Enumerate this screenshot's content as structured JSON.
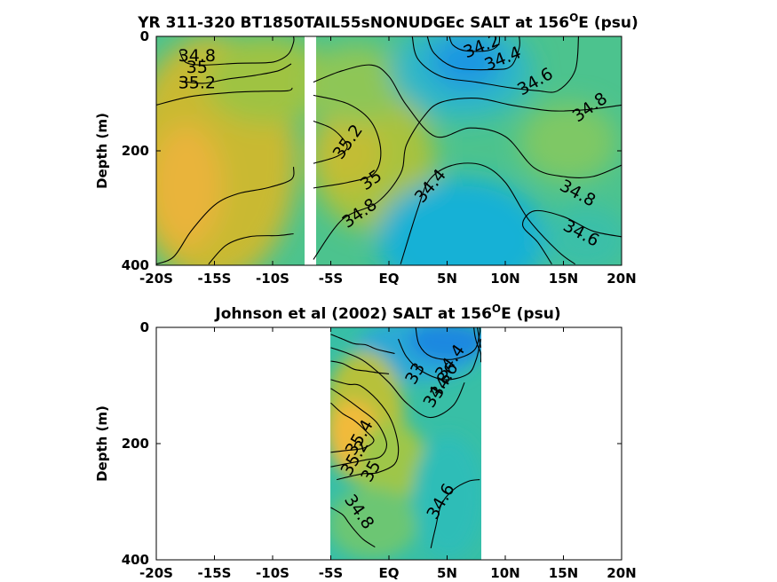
{
  "colors": {
    "fresh_min": "#1f8fe8",
    "fresh": "#2aa6da",
    "mid": "#2ec4b0",
    "green": "#63c47a",
    "yellowgreen": "#a8c23a",
    "salty": "#cdb92e",
    "salty_max": "#f5b83a",
    "contour_line": "#000000",
    "background": "#ffffff"
  },
  "chart_data": [
    {
      "type": "heatmap",
      "title_main": "YR 311-320 BT1850TAIL55sNONUDGEc SALT at 156",
      "title_sup": "O",
      "title_tail": "E (psu)",
      "xlabel": "",
      "ylabel": "Depth (m)",
      "x_ticks": [
        "-20S",
        "-15S",
        "-10S",
        "-5S",
        "EQ",
        "5N",
        "10N",
        "15N",
        "20N"
      ],
      "x_tick_values": [
        -20,
        -15,
        -10,
        -5,
        0,
        5,
        10,
        15,
        20
      ],
      "y_ticks": [
        "0",
        "200",
        "400"
      ],
      "y_tick_values": [
        0,
        200,
        400
      ],
      "xlim": [
        -20,
        20
      ],
      "ylim": [
        0,
        400
      ],
      "y_reversed": true,
      "data_gap_lat": [
        -7.4,
        -6.6
      ],
      "field_region_lat": [
        -20,
        20
      ],
      "contour_labels": [
        "34.8",
        "35",
        "35.2",
        "35.2",
        "35",
        "34.8",
        "34.4",
        "34.2",
        "34.4",
        "34.6",
        "34.8",
        "34.8",
        "34.6"
      ],
      "contour_label_positions": [
        [
          -16.5,
          35
        ],
        [
          -16.5,
          55
        ],
        [
          -16.5,
          82
        ],
        [
          -3.5,
          185
        ],
        [
          -1.5,
          252
        ],
        [
          -2.5,
          310
        ],
        [
          3.6,
          262
        ],
        [
          8,
          18
        ],
        [
          9.8,
          40
        ],
        [
          12.6,
          80
        ],
        [
          17.3,
          125
        ],
        [
          16.2,
          275
        ],
        [
          16.5,
          345
        ]
      ],
      "contour_lines": [
        {
          "level": "35",
          "points": [
            [
              -18,
              25
            ],
            [
              -17.5,
              45
            ],
            [
              -16,
              50
            ],
            [
              -13,
              47
            ],
            [
              -10.5,
              46
            ],
            [
              -9.5,
              42
            ],
            [
              -8.6,
              30
            ],
            [
              -8.2,
              10
            ],
            [
              -8.2,
              0
            ]
          ]
        },
        {
          "level": "35.2",
          "points": [
            [
              -18,
              78
            ],
            [
              -16,
              82
            ],
            [
              -14,
              75
            ],
            [
              -11.5,
              68
            ],
            [
              -9.5,
              60
            ],
            [
              -8.4,
              48
            ]
          ]
        },
        {
          "level": "35",
          "points": [
            [
              -20,
              120
            ],
            [
              -17,
              105
            ],
            [
              -13.5,
              98
            ],
            [
              -11,
              96
            ],
            [
              -8.7,
              95
            ],
            [
              -8.3,
              90
            ]
          ]
        },
        {
          "level": "35.2",
          "points": [
            [
              -20,
              398
            ],
            [
              -18.5,
              385
            ],
            [
              -17,
              340
            ],
            [
              -15,
              295
            ],
            [
              -13,
              275
            ],
            [
              -10.5,
              265
            ],
            [
              -8.4,
              250
            ],
            [
              -8.2,
              228
            ]
          ]
        },
        {
          "level": "35",
          "points": [
            [
              -15.5,
              398
            ],
            [
              -14,
              365
            ],
            [
              -12,
              350
            ],
            [
              -9.5,
              348
            ],
            [
              -8.2,
              345
            ]
          ]
        },
        {
          "level": "35.2",
          "points": [
            [
              -6.5,
              148
            ],
            [
              -5,
              160
            ],
            [
              -4,
              178
            ],
            [
              -3.6,
              195
            ],
            [
              -4.5,
              210
            ],
            [
              -6.5,
              222
            ]
          ]
        },
        {
          "level": "35",
          "points": [
            [
              -6.5,
              103
            ],
            [
              -3.5,
              118
            ],
            [
              -1.5,
              150
            ],
            [
              -0.7,
              200
            ],
            [
              -1.3,
              240
            ],
            [
              -3.5,
              255
            ],
            [
              -6.5,
              265
            ]
          ]
        },
        {
          "level": "34.8",
          "points": [
            [
              -6.5,
              80
            ],
            [
              -4,
              60
            ],
            [
              -1.5,
              50
            ],
            [
              0,
              70
            ],
            [
              1.5,
              120
            ],
            [
              4,
              175
            ],
            [
              7,
              160
            ],
            [
              10,
              175
            ],
            [
              12.5,
              230
            ],
            [
              15,
              245
            ],
            [
              17.5,
              245
            ],
            [
              20,
              225
            ]
          ]
        },
        {
          "level": "34.8",
          "points": [
            [
              -6.5,
              390
            ],
            [
              -4,
              320
            ],
            [
              -1,
              290
            ],
            [
              1,
              240
            ],
            [
              1.5,
              190
            ],
            [
              3,
              140
            ],
            [
              4.5,
              115
            ],
            [
              7.5,
              108
            ],
            [
              10.5,
              120
            ],
            [
              14,
              130
            ],
            [
              17,
              128
            ],
            [
              20,
              120
            ]
          ]
        },
        {
          "level": "34.6",
          "points": [
            [
              2,
              0
            ],
            [
              2.5,
              40
            ],
            [
              4.5,
              70
            ],
            [
              7.5,
              80
            ],
            [
              10.5,
              90
            ],
            [
              12.8,
              95
            ],
            [
              14.5,
              95
            ],
            [
              16,
              60
            ],
            [
              16.3,
              0
            ]
          ]
        },
        {
          "level": "34.4",
          "points": [
            [
              3.3,
              0
            ],
            [
              3.9,
              30
            ],
            [
              5.8,
              55
            ],
            [
              9,
              58
            ],
            [
              10.5,
              52
            ],
            [
              11.2,
              20
            ],
            [
              11.2,
              0
            ]
          ]
        },
        {
          "level": "34.2",
          "points": [
            [
              5.2,
              0
            ],
            [
              5.5,
              15
            ],
            [
              6.5,
              25
            ],
            [
              8.5,
              25
            ],
            [
              9.4,
              15
            ],
            [
              9.5,
              0
            ]
          ]
        },
        {
          "level": "34.4",
          "points": [
            [
              1,
              398
            ],
            [
              2.5,
              300
            ],
            [
              3.5,
              250
            ],
            [
              5.5,
              225
            ],
            [
              8,
              225
            ],
            [
              10,
              255
            ],
            [
              12,
              320
            ],
            [
              14.5,
              375
            ],
            [
              16,
              398
            ]
          ]
        },
        {
          "level": "34.6",
          "points": [
            [
              14,
              398
            ],
            [
              12.8,
              360
            ],
            [
              11.5,
              330
            ],
            [
              12.5,
              305
            ],
            [
              15,
              315
            ],
            [
              17.5,
              340
            ],
            [
              20,
              350
            ]
          ]
        }
      ]
    },
    {
      "type": "heatmap",
      "title_main": "Johnson et al (2002) SALT at 156",
      "title_sup": "O",
      "title_tail": "E (psu)",
      "xlabel": "",
      "ylabel": "Depth (m)",
      "x_ticks": [
        "-20S",
        "-15S",
        "-10S",
        "-5S",
        "EQ",
        "5N",
        "10N",
        "15N",
        "20N"
      ],
      "x_tick_values": [
        -20,
        -15,
        -10,
        -5,
        0,
        5,
        10,
        15,
        20
      ],
      "y_ticks": [
        "0",
        "200",
        "400"
      ],
      "y_tick_values": [
        0,
        200,
        400
      ],
      "xlim": [
        -20,
        20
      ],
      "ylim": [
        0,
        400
      ],
      "y_reversed": true,
      "field_region_lat": [
        -5,
        8
      ],
      "contour_labels": [
        "34.4",
        "34.6",
        "34.8",
        "33",
        "35.4",
        "35.2",
        "35",
        "34.8",
        "34.6"
      ],
      "contour_label_positions": [
        [
          5.3,
          60
        ],
        [
          4.8,
          92
        ],
        [
          4.2,
          108
        ],
        [
          2.3,
          80
        ],
        [
          -2.5,
          190
        ],
        [
          -2.9,
          225
        ],
        [
          -1.5,
          248
        ],
        [
          -2.6,
          318
        ],
        [
          4.5,
          300
        ]
      ],
      "contour_lines": [
        {
          "level": "34.4",
          "points": [
            [
              2.3,
              0
            ],
            [
              2.6,
              30
            ],
            [
              3.6,
              50
            ],
            [
              5.5,
              55
            ],
            [
              7.3,
              40
            ],
            [
              7.8,
              10
            ],
            [
              7.8,
              0
            ]
          ]
        },
        {
          "level": "34.6",
          "points": [
            [
              0.8,
              20
            ],
            [
              1.5,
              50
            ],
            [
              2.8,
              75
            ],
            [
              4.8,
              90
            ],
            [
              6.8,
              80
            ],
            [
              7.5,
              55
            ],
            [
              7.9,
              20
            ]
          ]
        },
        {
          "level": "34.8",
          "points": [
            [
              -5,
              35
            ],
            [
              -3.5,
              45
            ],
            [
              -2,
              60
            ],
            [
              0,
              95
            ],
            [
              1.5,
              130
            ],
            [
              3.5,
              155
            ],
            [
              5.5,
              135
            ],
            [
              6.5,
              95
            ]
          ]
        },
        {
          "level": "35",
          "points": [
            [
              -5,
              90
            ],
            [
              -3.5,
              98
            ],
            [
              -2.5,
              100
            ],
            [
              -1,
              125
            ],
            [
              0.2,
              160
            ],
            [
              0.8,
              205
            ],
            [
              0.5,
              235
            ],
            [
              -1,
              250
            ],
            [
              -2.3,
              252
            ],
            [
              -4.5,
              262
            ]
          ]
        },
        {
          "level": "35.2",
          "points": [
            [
              -5,
              105
            ],
            [
              -4,
              118
            ],
            [
              -2.5,
              140
            ],
            [
              -1,
              165
            ],
            [
              -0.2,
              200
            ],
            [
              -0.7,
              222
            ],
            [
              -2,
              228
            ],
            [
              -4,
              236
            ],
            [
              -5,
              240
            ]
          ]
        },
        {
          "level": "35.4",
          "points": [
            [
              -5,
              130
            ],
            [
              -4,
              148
            ],
            [
              -3,
              160
            ],
            [
              -2,
              178
            ],
            [
              -1.3,
              195
            ],
            [
              -2.2,
              208
            ],
            [
              -3.8,
              212
            ],
            [
              -5,
              215
            ]
          ]
        },
        {
          "level": "34.8",
          "points": [
            [
              -5,
              310
            ],
            [
              -4,
              322
            ],
            [
              -3.5,
              335
            ],
            [
              -3,
              348
            ],
            [
              -2.2,
              365
            ],
            [
              -1.2,
              378
            ]
          ]
        },
        {
          "level": "34.6",
          "points": [
            [
              3.6,
              380
            ],
            [
              4,
              345
            ],
            [
              4.5,
              305
            ],
            [
              5.5,
              280
            ],
            [
              6.8,
              265
            ],
            [
              7.8,
              262
            ]
          ]
        },
        {
          "level": "35",
          "points": [
            [
              -5,
              58
            ],
            [
              -4,
              62
            ],
            [
              -3,
              72
            ],
            [
              -2,
              75
            ],
            [
              -1,
              78
            ],
            [
              0,
              80
            ]
          ]
        },
        {
          "level": "35",
          "points": [
            [
              -5,
              12
            ],
            [
              -4,
              20
            ],
            [
              -3,
              28
            ],
            [
              -2,
              30
            ],
            [
              -1,
              38
            ],
            [
              0.5,
              45
            ]
          ]
        },
        {
          "level": "34.2",
          "points": [
            [
              7.3,
              0
            ],
            [
              7.4,
              15
            ],
            [
              7.6,
              30
            ],
            [
              7.9,
              45
            ],
            [
              7.9,
              60
            ]
          ]
        },
        {
          "level": "34",
          "points": [
            [
              7.6,
              0
            ],
            [
              7.7,
              12
            ],
            [
              7.8,
              25
            ],
            [
              7.9,
              35
            ]
          ]
        }
      ]
    }
  ]
}
